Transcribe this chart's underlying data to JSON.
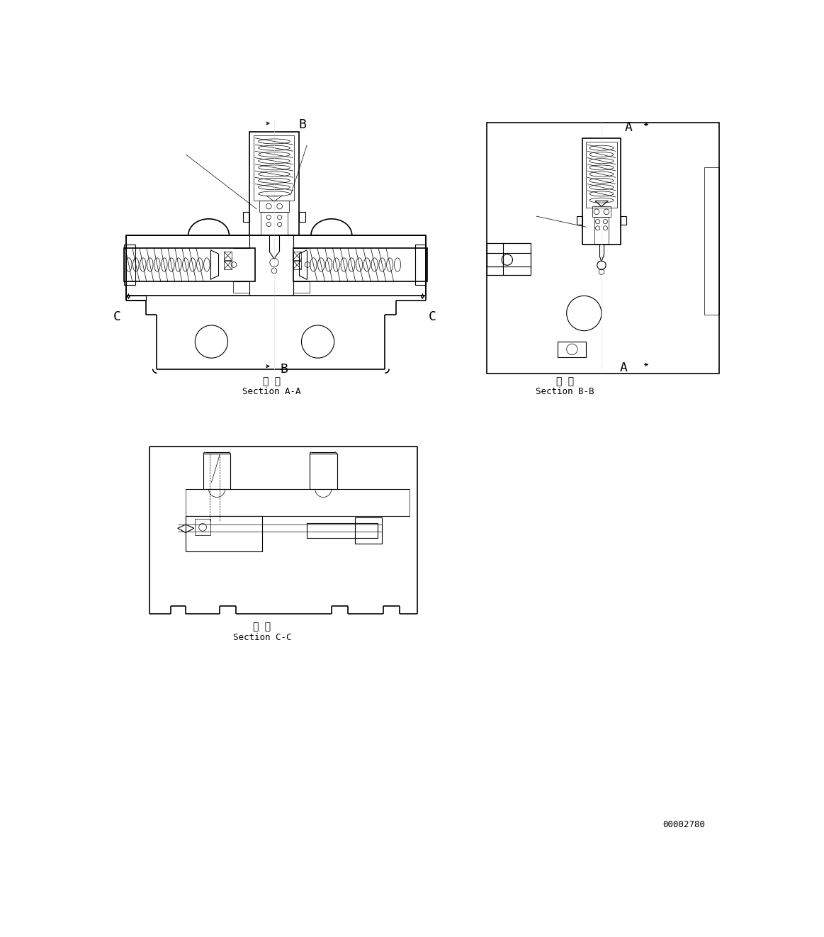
{
  "bg_color": "#ffffff",
  "lw": 0.8,
  "lw_thin": 0.5,
  "lw_thick": 1.2,
  "section_aa": "断 面",
  "section_aa2": "Section A-A",
  "section_bb": "断 面",
  "section_bb2": "Section B-B",
  "section_cc": "断 面",
  "section_cc2": "Section C-C",
  "doc_number": "00002780"
}
